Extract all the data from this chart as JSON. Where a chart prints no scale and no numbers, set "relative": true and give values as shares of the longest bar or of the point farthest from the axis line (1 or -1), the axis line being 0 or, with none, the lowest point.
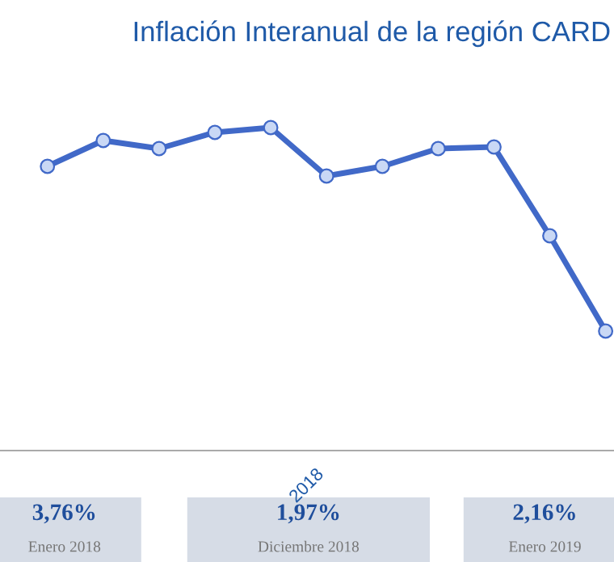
{
  "chart_data": {
    "type": "line",
    "title": "Inflación Interanual de la región CARD",
    "relative": true,
    "categories": [
      null,
      null,
      null,
      null,
      null,
      null,
      null,
      null,
      null,
      null,
      null
    ],
    "series": [
      {
        "color": "#4169c8",
        "values": [
          0.88,
          0.96,
          0.935,
          0.985,
          1,
          0.85,
          0.88,
          0.935,
          0.94,
          0.665,
          0.37
        ]
      }
    ],
    "marker": "circle",
    "line_style": "solid",
    "grid": false,
    "legend": false,
    "annotations": [
      "2018",
      "3,76%",
      "Enero 2018",
      "1,97%",
      "Diciembre 2018",
      "2,16%",
      "Enero 2019"
    ]
  }
}
